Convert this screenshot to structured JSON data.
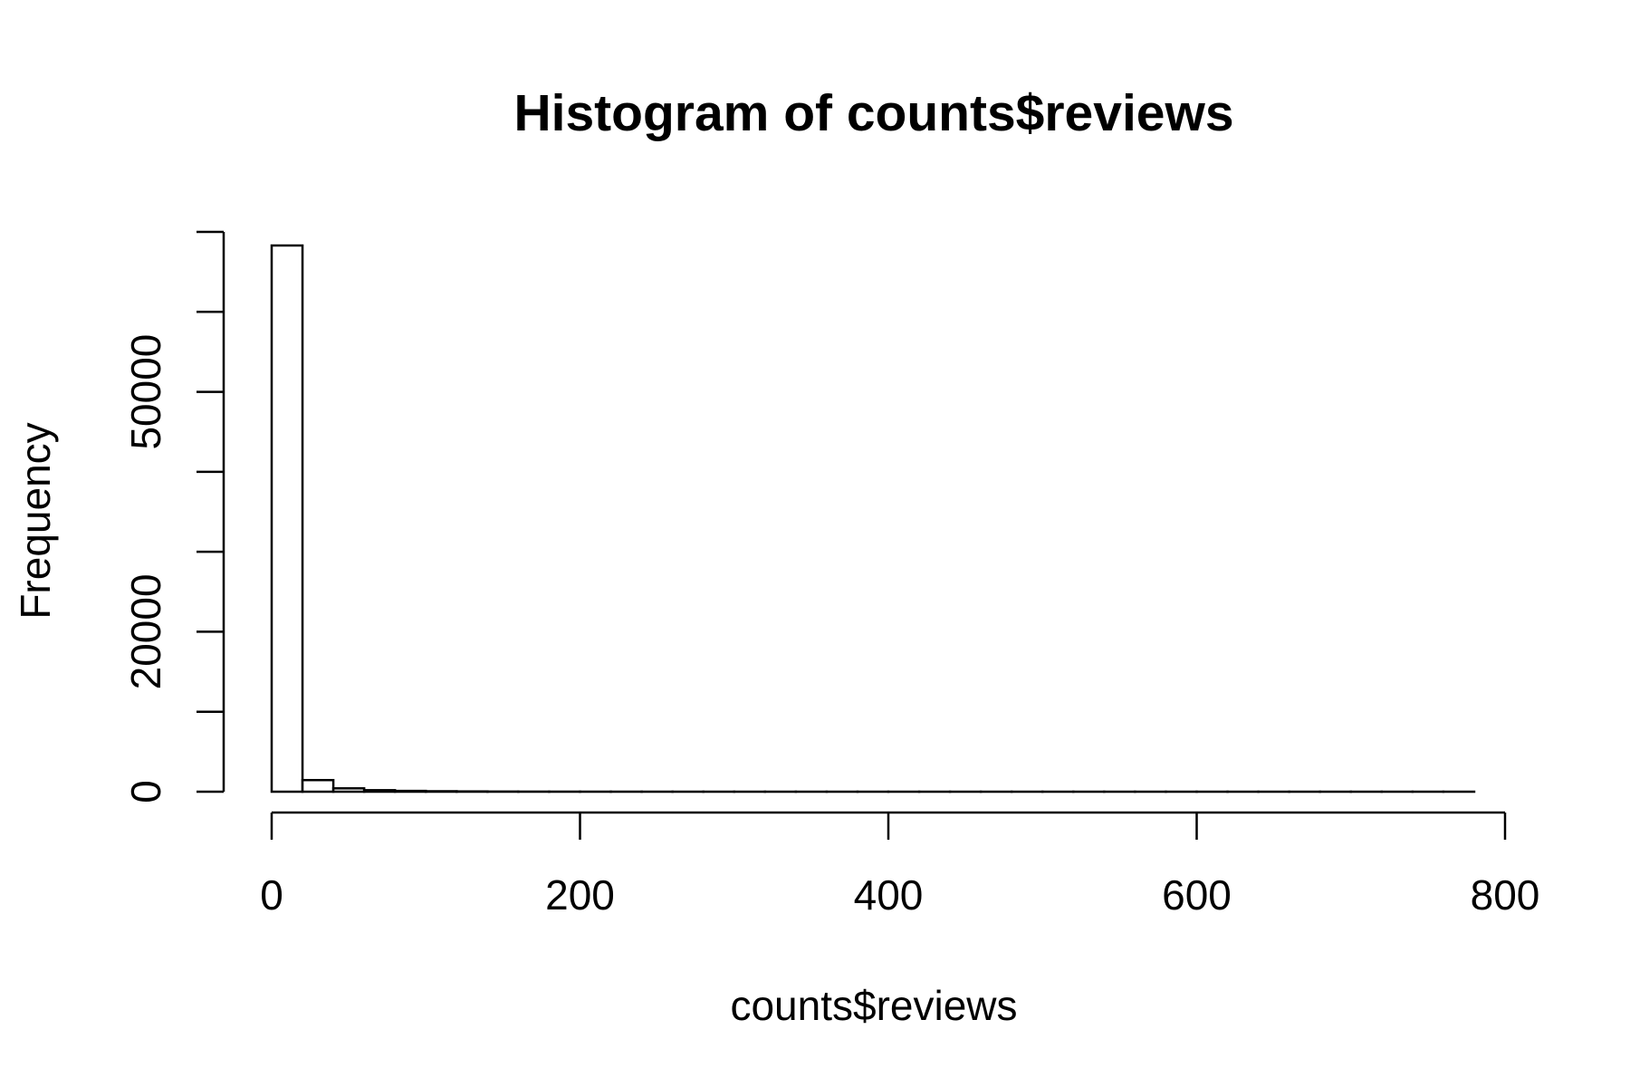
{
  "chart_data": {
    "type": "bar",
    "subtype": "histogram",
    "title": "Histogram of counts$reviews",
    "xlabel": "counts$reviews",
    "ylabel": "Frequency",
    "xlim": [
      0,
      800
    ],
    "ylim": [
      0,
      70000
    ],
    "x_ticks": [
      0,
      200,
      400,
      600,
      800
    ],
    "y_ticks": [
      0,
      10000,
      20000,
      30000,
      40000,
      50000,
      60000,
      70000
    ],
    "y_tick_labels": [
      0,
      20000,
      50000
    ],
    "bin_width": 20,
    "bin_edges": [
      0,
      20,
      40,
      60,
      80,
      100,
      120,
      140,
      160,
      180,
      200,
      220,
      240,
      260,
      280,
      300,
      320,
      340,
      360,
      380,
      400,
      420,
      440,
      460,
      480,
      500,
      520,
      540,
      560,
      580,
      600,
      620,
      640,
      660,
      680,
      700,
      720,
      740,
      760,
      780
    ],
    "values": [
      68300,
      1450,
      420,
      190,
      100,
      60,
      35,
      20,
      12,
      8,
      6,
      5,
      4,
      3,
      3,
      2,
      2,
      2,
      1,
      1,
      1,
      1,
      1,
      1,
      1,
      1,
      1,
      1,
      1,
      1,
      1,
      1,
      1,
      1,
      1,
      1,
      1,
      1,
      1
    ],
    "grid": false,
    "legend": "none"
  }
}
